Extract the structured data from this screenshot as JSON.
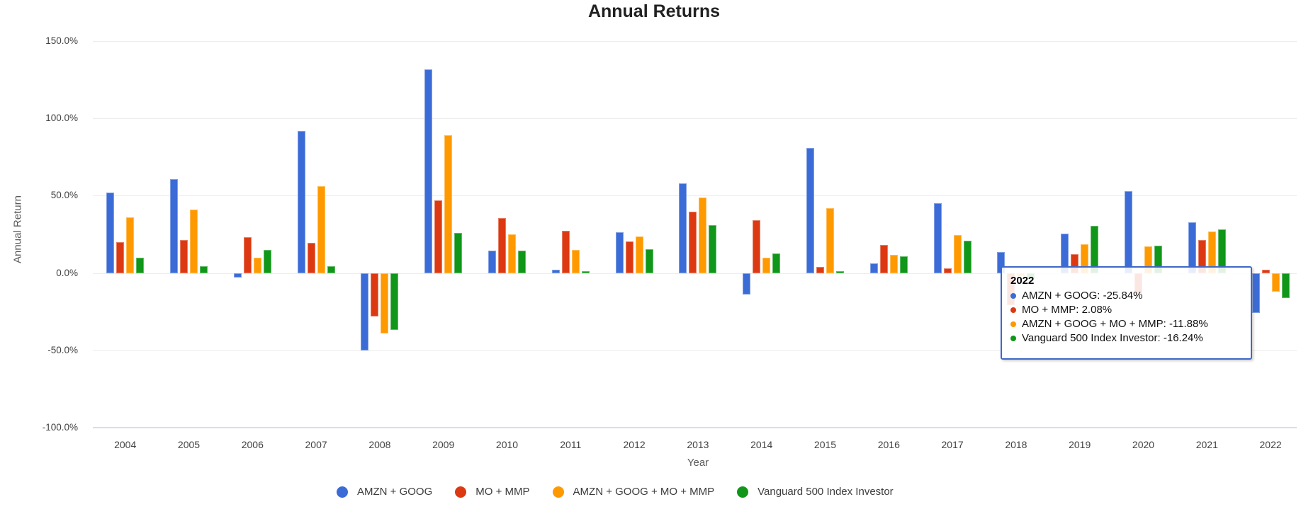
{
  "chart_data": {
    "type": "bar",
    "title": "Annual Returns",
    "xlabel": "Year",
    "ylabel": "Annual Return",
    "ylim": [
      -100,
      150
    ],
    "grid": true,
    "legend_position": "bottom",
    "yticks": [
      {
        "value": 150,
        "label": "150.0%"
      },
      {
        "value": 100,
        "label": "100.0%"
      },
      {
        "value": 50,
        "label": "50.0%"
      },
      {
        "value": 0,
        "label": "0.0%"
      },
      {
        "value": -50,
        "label": "-50.0%"
      },
      {
        "value": -100,
        "label": "-100.0%"
      }
    ],
    "categories": [
      "2004",
      "2005",
      "2006",
      "2007",
      "2008",
      "2009",
      "2010",
      "2011",
      "2012",
      "2013",
      "2014",
      "2015",
      "2016",
      "2017",
      "2018",
      "2019",
      "2020",
      "2021",
      "2022"
    ],
    "series": [
      {
        "name": "AMZN + GOOG",
        "color": "#3b6bd6",
        "values": [
          52,
          60.5,
          -3,
          92,
          -50,
          131.5,
          14.5,
          2,
          26.5,
          58,
          -14,
          81,
          6,
          45,
          13.5,
          25.5,
          53,
          33,
          -25.84
        ]
      },
      {
        "name": "MO + MMP",
        "color": "#dc3912",
        "values": [
          20,
          21.5,
          23,
          19.5,
          -28,
          47,
          35.5,
          27.5,
          20.5,
          39.5,
          34,
          4,
          18,
          3,
          -21,
          12,
          -13.5,
          21.5,
          2.08
        ]
      },
      {
        "name": "AMZN + GOOG + MO + MMP",
        "color": "#ff9900",
        "values": [
          36,
          41,
          10,
          56,
          -39,
          89,
          25,
          15,
          23.5,
          49,
          10,
          42,
          11.5,
          24.5,
          -2,
          18.5,
          17,
          27,
          -11.88
        ]
      },
      {
        "name": "Vanguard 500 Index Investor",
        "color": "#109618",
        "values": [
          10,
          4.5,
          15,
          4.5,
          -37,
          26,
          14.5,
          1,
          15.5,
          31,
          12.5,
          1.3,
          11,
          21,
          -4,
          30.5,
          17.5,
          28,
          -16.24
        ]
      }
    ]
  },
  "tooltip": {
    "title": "2022",
    "items": [
      {
        "series": "AMZN + GOOG",
        "value": "-25.84%",
        "color": "#3b6bd6"
      },
      {
        "series": "MO + MMP",
        "value": "2.08%",
        "color": "#dc3912"
      },
      {
        "series": "AMZN + GOOG + MO + MMP",
        "value": "-11.88%",
        "color": "#ff9900"
      },
      {
        "series": "Vanguard 500 Index Investor",
        "value": "-16.24%",
        "color": "#109618"
      }
    ]
  }
}
